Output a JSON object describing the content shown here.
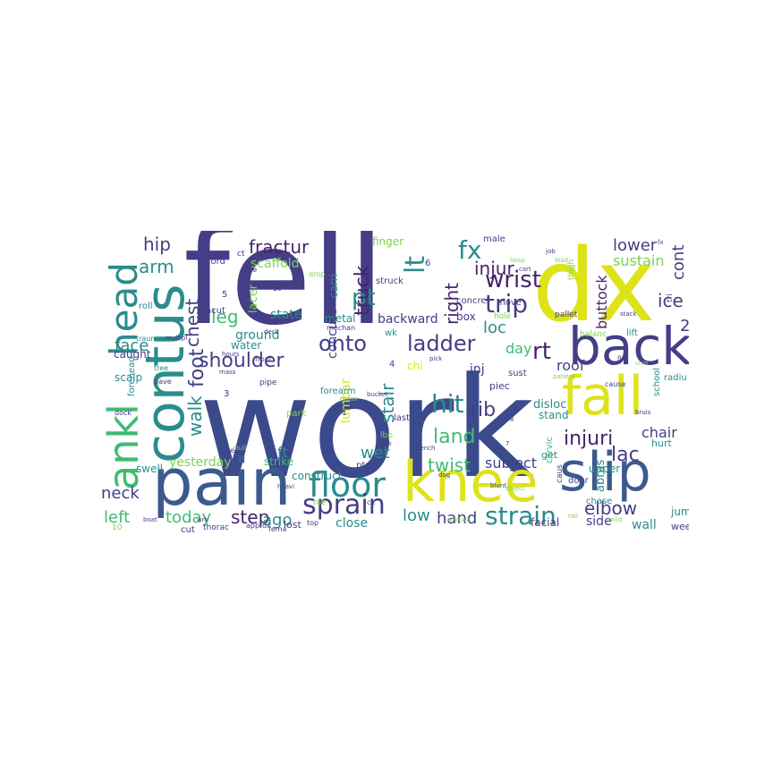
{
  "wordcloud": {
    "colors": {
      "navy": "#3b4a8c",
      "indigo": "#433e85",
      "blue": "#3d5a8f",
      "teal": "#2a8c8c",
      "green": "#3ebc74",
      "lime": "#7dd34f",
      "yellow": "#dde318",
      "purple": "#46246c"
    },
    "words": {
      "work": "work",
      "fell": "fell",
      "dx": "dx",
      "pain": "pain",
      "back": "back",
      "fall": "fall",
      "knee": "knee",
      "slip": "slip",
      "contus": "contus",
      "ankl": "ankl",
      "head": "head",
      "floor": "floor",
      "sprain": "sprain",
      "strain": "strain",
      "shoulder": "shoulder",
      "onto": "onto",
      "ladder": "ladder",
      "trip": "trip",
      "hit": "hit",
      "land": "land",
      "injuri": "injuri",
      "wrist": "wrist",
      "injur": "injur",
      "fx": "fx",
      "pt": "pt",
      "lt": "lt",
      "right": "right",
      "rt": "rt",
      "truck": "truck",
      "fractur": "fractur",
      "hip": "hip",
      "arm": "arm",
      "leg": "leg",
      "chest": "chest",
      "foot": "foot",
      "walk": "walk",
      "face": "face",
      "neck": "neck",
      "left": "left",
      "today": "today",
      "step": "step",
      "ago": "ago",
      "hand": "hand",
      "low": "low",
      "elbow": "elbow",
      "lac": "lac",
      "twist": "twist",
      "rib": "rib",
      "stair": "stair",
      "wet": "wet",
      "loc": "loc",
      "lower": "lower",
      "sustain": "sustain",
      "cont": "cont",
      "ice": "ice",
      "buttock": "buttock",
      "two": "2",
      "chair": "chair",
      "report": "report",
      "roof": "roof",
      "day": "day",
      "backward": "backward",
      "state": "state",
      "ground": "ground",
      "scaffold": "scaffold",
      "concuss": "concuss",
      "lumbar": "lumbar",
      "subject": "subject",
      "yesterday": "yesterday",
      "close": "close",
      "ft": "ft",
      "carri": "carri",
      "lacer": "lacer",
      "finger": "finger",
      "box": "box",
      "metal": "metal",
      "abras": "abras",
      "wall": "wall",
      "inj": "inj",
      "disloc": "disloc",
      "stand": "stand",
      "jump": "jump",
      "side": "side",
      "swell": "swell",
      "scalp": "scalp",
      "caught": "caught",
      "water": "water",
      "struck": "struck",
      "cord": "cord",
      "st": "st",
      "acut": "acut",
      "roll": "roll",
      "five": "5",
      "four": "4",
      "six": "6",
      "male": "male",
      "upper": "upper",
      "hurt": "hurt",
      "door": "door",
      "week": "week",
      "chase": "chase",
      "facial": "facial",
      "lost": "lost",
      "piec": "piec",
      "concrel": "concrel",
      "move": "move",
      "school": "school",
      "forearm": "forearm",
      "strike": "strike",
      "construct": "construct",
      "last": "last",
      "sust": "sust",
      "get": "get",
      "cervic": "cervic",
      "pallet": "pallet",
      "thigh": "thigh",
      "forehead": "forehead",
      "pipe": "pipe",
      "tri": "tri",
      "lift": "lift",
      "balanc": "balanc",
      "radiu": "radiu",
      "cut": "cut",
      "pta": "pta",
      "caus": "caus",
      "ct": "ct",
      "pole": "pole",
      "chi": "chi",
      "wk": "wk",
      "hole": "hole",
      "tree": "tree",
      "drop": "drop",
      "trauma": "trauma",
      "lbp": "lbp",
      "three": "3",
      "ten": "10",
      "neg": "neg",
      "front": "front",
      "cx": "cx",
      "mechan": "mechan",
      "park": "park",
      "toe": "toe",
      "one": "1",
      "top": "top",
      "thorac": "thorac",
      "approx": "approx",
      "fema": "fema",
      "dock": "dock",
      "paved": "pave",
      "patient": "patient",
      "cause": "cause",
      "stack": "stack",
      "job": "job",
      "load": "load",
      "unk": "unk",
      "seven": "7",
      "eight": "8",
      "bruis": "bruis",
      "mull": "mull",
      "dog": "dog",
      "blunt": "blunt",
      "heavi": "heavi",
      "bucket": "bucket",
      "rail": "rail",
      "floor2": "fl",
      "wrk": "wrk",
      "hosp": "hosp",
      "mass": "mass",
      "deck": "deck",
      "grass": "grass",
      "bench": "bench",
      "walkwa": "walkwa",
      "cart": "cart",
      "chin": "chin",
      "pick": "pick",
      "object": "object",
      "boat": "boat",
      "fx2": "fx",
      "mild": "mild",
      "multipl": "multipl",
      "hours": "hours"
    }
  }
}
